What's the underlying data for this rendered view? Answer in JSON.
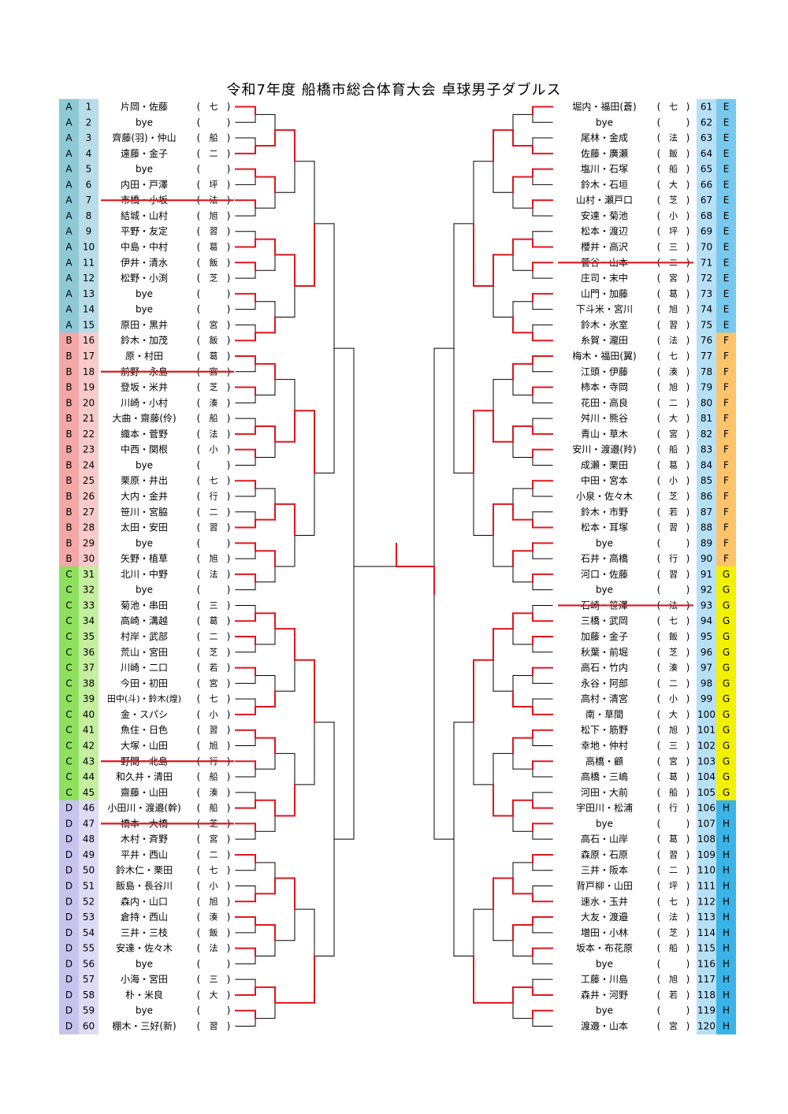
{
  "title": "令和7年度  船橋市総合体育大会  卓球男子ダブルス",
  "group_colors": {
    "A": {
      "block": "#8ec9d6",
      "num": "#b8dde8"
    },
    "B": {
      "block": "#f4a7a7",
      "num": "#f9caca"
    },
    "C": {
      "block": "#8ee05e",
      "num": "#c4ef9f"
    },
    "D": {
      "block": "#c6c3ee",
      "num": "#dddbf5"
    },
    "E": {
      "block": "#78c8ee",
      "num": "#b6e0f6"
    },
    "F": {
      "block": "#fcc46a",
      "num": "#b6e0f6"
    },
    "G": {
      "block": "#f2f200",
      "num": "#b6e0f6"
    },
    "H": {
      "block": "#3ab3e6",
      "num": "#b6e0f6"
    }
  },
  "line_colors": {
    "advance": "#e0161e",
    "bracket": "#000000"
  },
  "left_entries": [
    {
      "group": "A",
      "num": "1",
      "names": "片岡・佐藤",
      "club": "七",
      "scratched": false
    },
    {
      "group": "A",
      "num": "2",
      "names": "bye",
      "club": "",
      "scratched": false
    },
    {
      "group": "A",
      "num": "3",
      "names": "齊藤(羽)・仲山",
      "club": "船",
      "scratched": false
    },
    {
      "group": "A",
      "num": "4",
      "names": "遠藤・金子",
      "club": "二",
      "scratched": false
    },
    {
      "group": "A",
      "num": "5",
      "names": "bye",
      "club": "",
      "scratched": false
    },
    {
      "group": "A",
      "num": "6",
      "names": "内田・戸澤",
      "club": "坪",
      "scratched": false
    },
    {
      "group": "A",
      "num": "7",
      "names": "市橋・小坂",
      "club": "法",
      "scratched": true
    },
    {
      "group": "A",
      "num": "8",
      "names": "結城・山村",
      "club": "旭",
      "scratched": false
    },
    {
      "group": "A",
      "num": "9",
      "names": "平野・友定",
      "club": "習",
      "scratched": false
    },
    {
      "group": "A",
      "num": "10",
      "names": "中島・中村",
      "club": "葛",
      "scratched": false
    },
    {
      "group": "A",
      "num": "11",
      "names": "伊井・清水",
      "club": "飯",
      "scratched": false
    },
    {
      "group": "A",
      "num": "12",
      "names": "松野・小渕",
      "club": "芝",
      "scratched": false
    },
    {
      "group": "A",
      "num": "13",
      "names": "bye",
      "club": "",
      "scratched": false
    },
    {
      "group": "A",
      "num": "14",
      "names": "bye",
      "club": "",
      "scratched": false
    },
    {
      "group": "A",
      "num": "15",
      "names": "原田・黒井",
      "club": "宮",
      "scratched": false
    },
    {
      "group": "B",
      "num": "16",
      "names": "鈴木・加茂",
      "club": "飯",
      "scratched": false
    },
    {
      "group": "B",
      "num": "17",
      "names": "原・村田",
      "club": "葛",
      "scratched": false
    },
    {
      "group": "B",
      "num": "18",
      "names": "前野・永島",
      "club": "宮",
      "scratched": true
    },
    {
      "group": "B",
      "num": "19",
      "names": "登坂・米井",
      "club": "芝",
      "scratched": false
    },
    {
      "group": "B",
      "num": "20",
      "names": "川崎・小村",
      "club": "湊",
      "scratched": false
    },
    {
      "group": "B",
      "num": "21",
      "names": "大曲・齋藤(伶)",
      "club": "船",
      "scratched": false
    },
    {
      "group": "B",
      "num": "22",
      "names": "織本・菅野",
      "club": "法",
      "scratched": false
    },
    {
      "group": "B",
      "num": "23",
      "names": "中西・関根",
      "club": "小",
      "scratched": false
    },
    {
      "group": "B",
      "num": "24",
      "names": "bye",
      "club": "",
      "scratched": false
    },
    {
      "group": "B",
      "num": "25",
      "names": "栗原・井出",
      "club": "七",
      "scratched": false
    },
    {
      "group": "B",
      "num": "26",
      "names": "大内・金井",
      "club": "行",
      "scratched": false
    },
    {
      "group": "B",
      "num": "27",
      "names": "笹川・宮脇",
      "club": "二",
      "scratched": false
    },
    {
      "group": "B",
      "num": "28",
      "names": "太田・安田",
      "club": "習",
      "scratched": false
    },
    {
      "group": "B",
      "num": "29",
      "names": "bye",
      "club": "",
      "scratched": false
    },
    {
      "group": "B",
      "num": "30",
      "names": "矢野・植草",
      "club": "旭",
      "scratched": false
    },
    {
      "group": "C",
      "num": "31",
      "names": "北川・中野",
      "club": "法",
      "scratched": false
    },
    {
      "group": "C",
      "num": "32",
      "names": "bye",
      "club": "",
      "scratched": false
    },
    {
      "group": "C",
      "num": "33",
      "names": "菊池・串田",
      "club": "三",
      "scratched": false
    },
    {
      "group": "C",
      "num": "34",
      "names": "高崎・溝越",
      "club": "葛",
      "scratched": false
    },
    {
      "group": "C",
      "num": "35",
      "names": "村岸・武部",
      "club": "二",
      "scratched": false
    },
    {
      "group": "C",
      "num": "36",
      "names": "荒山・宮田",
      "club": "芝",
      "scratched": false
    },
    {
      "group": "C",
      "num": "37",
      "names": "川崎・二口",
      "club": "若",
      "scratched": false
    },
    {
      "group": "C",
      "num": "38",
      "names": "今田・初田",
      "club": "宮",
      "scratched": false
    },
    {
      "group": "C",
      "num": "39",
      "names": "田中(斗)・鈴木(煌)",
      "club": "七",
      "scratched": false
    },
    {
      "group": "C",
      "num": "40",
      "names": "金・スパシ",
      "club": "小",
      "scratched": false
    },
    {
      "group": "C",
      "num": "41",
      "names": "魚住・日色",
      "club": "習",
      "scratched": false
    },
    {
      "group": "C",
      "num": "42",
      "names": "大塚・山田",
      "club": "旭",
      "scratched": false
    },
    {
      "group": "C",
      "num": "43",
      "names": "野間・北島",
      "club": "行",
      "scratched": true
    },
    {
      "group": "C",
      "num": "44",
      "names": "和久井・清田",
      "club": "船",
      "scratched": false
    },
    {
      "group": "C",
      "num": "45",
      "names": "齋藤・山田",
      "club": "湊",
      "scratched": false
    },
    {
      "group": "D",
      "num": "46",
      "names": "小田川・渡邉(幹)",
      "club": "船",
      "scratched": false
    },
    {
      "group": "D",
      "num": "47",
      "names": "橋本・大橋",
      "club": "芝",
      "scratched": true
    },
    {
      "group": "D",
      "num": "48",
      "names": "木村・斉野",
      "club": "宮",
      "scratched": false
    },
    {
      "group": "D",
      "num": "49",
      "names": "平井・西山",
      "club": "二",
      "scratched": false
    },
    {
      "group": "D",
      "num": "50",
      "names": "鈴木仁・栗田",
      "club": "七",
      "scratched": false
    },
    {
      "group": "D",
      "num": "51",
      "names": "飯島・長谷川",
      "club": "小",
      "scratched": false
    },
    {
      "group": "D",
      "num": "52",
      "names": "森内・山口",
      "club": "旭",
      "scratched": false
    },
    {
      "group": "D",
      "num": "53",
      "names": "倉持・西山",
      "club": "湊",
      "scratched": false
    },
    {
      "group": "D",
      "num": "54",
      "names": "三井・三枝",
      "club": "飯",
      "scratched": false
    },
    {
      "group": "D",
      "num": "55",
      "names": "安達・佐々木",
      "club": "法",
      "scratched": false
    },
    {
      "group": "D",
      "num": "56",
      "names": "bye",
      "club": "",
      "scratched": false
    },
    {
      "group": "D",
      "num": "57",
      "names": "小海・宮田",
      "club": "三",
      "scratched": false
    },
    {
      "group": "D",
      "num": "58",
      "names": "朴・米良",
      "club": "大",
      "scratched": false
    },
    {
      "group": "D",
      "num": "59",
      "names": "bye",
      "club": "",
      "scratched": false
    },
    {
      "group": "D",
      "num": "60",
      "names": "棚木・三好(新)",
      "club": "習",
      "scratched": false
    }
  ],
  "right_entries": [
    {
      "group": "E",
      "num": "61",
      "names": "堀内・福田(蒼)",
      "club": "七",
      "scratched": false
    },
    {
      "group": "E",
      "num": "62",
      "names": "bye",
      "club": "",
      "scratched": false
    },
    {
      "group": "E",
      "num": "63",
      "names": "尾林・金成",
      "club": "法",
      "scratched": false
    },
    {
      "group": "E",
      "num": "64",
      "names": "佐藤・廣瀬",
      "club": "飯",
      "scratched": false
    },
    {
      "group": "E",
      "num": "65",
      "names": "塩川・石塚",
      "club": "船",
      "scratched": false
    },
    {
      "group": "E",
      "num": "66",
      "names": "鈴木・石垣",
      "club": "大",
      "scratched": false
    },
    {
      "group": "E",
      "num": "67",
      "names": "山村・瀬戸口",
      "club": "芝",
      "scratched": false
    },
    {
      "group": "E",
      "num": "68",
      "names": "安達・菊池",
      "club": "小",
      "scratched": false
    },
    {
      "group": "E",
      "num": "69",
      "names": "松本・渡辺",
      "club": "坪",
      "scratched": false
    },
    {
      "group": "E",
      "num": "70",
      "names": "櫻井・高沢",
      "club": "三",
      "scratched": false
    },
    {
      "group": "E",
      "num": "71",
      "names": "菅谷・山本",
      "club": "二",
      "scratched": true
    },
    {
      "group": "E",
      "num": "72",
      "names": "庄司・末中",
      "club": "宮",
      "scratched": false
    },
    {
      "group": "E",
      "num": "73",
      "names": "山門・加藤",
      "club": "葛",
      "scratched": false
    },
    {
      "group": "E",
      "num": "74",
      "names": "下斗米・宮川",
      "club": "旭",
      "scratched": false
    },
    {
      "group": "E",
      "num": "75",
      "names": "鈴木・氷室",
      "club": "習",
      "scratched": false
    },
    {
      "group": "F",
      "num": "76",
      "names": "糸賀・瀧田",
      "club": "法",
      "scratched": false
    },
    {
      "group": "F",
      "num": "77",
      "names": "梅木・福田(翼)",
      "club": "七",
      "scratched": false
    },
    {
      "group": "F",
      "num": "78",
      "names": "江頭・伊藤",
      "club": "湊",
      "scratched": false
    },
    {
      "group": "F",
      "num": "79",
      "names": "柿本・寺岡",
      "club": "旭",
      "scratched": false
    },
    {
      "group": "F",
      "num": "80",
      "names": "花田・高良",
      "club": "二",
      "scratched": false
    },
    {
      "group": "F",
      "num": "81",
      "names": "舛川・熊谷",
      "club": "大",
      "scratched": false
    },
    {
      "group": "F",
      "num": "82",
      "names": "青山・草木",
      "club": "宮",
      "scratched": false
    },
    {
      "group": "F",
      "num": "83",
      "names": "安川・渡邉(羚)",
      "club": "船",
      "scratched": false
    },
    {
      "group": "F",
      "num": "84",
      "names": "成瀬・栗田",
      "club": "葛",
      "scratched": false
    },
    {
      "group": "F",
      "num": "85",
      "names": "中田・宮本",
      "club": "小",
      "scratched": false
    },
    {
      "group": "F",
      "num": "86",
      "names": "小泉・佐々木",
      "club": "芝",
      "scratched": false
    },
    {
      "group": "F",
      "num": "87",
      "names": "鈴木・市野",
      "club": "若",
      "scratched": false
    },
    {
      "group": "F",
      "num": "88",
      "names": "松本・耳塚",
      "club": "習",
      "scratched": false
    },
    {
      "group": "F",
      "num": "89",
      "names": "bye",
      "club": "",
      "scratched": false
    },
    {
      "group": "F",
      "num": "90",
      "names": "石井・高橋",
      "club": "行",
      "scratched": false
    },
    {
      "group": "G",
      "num": "91",
      "names": "河口・佐藤",
      "club": "習",
      "scratched": false
    },
    {
      "group": "G",
      "num": "92",
      "names": "bye",
      "club": "",
      "scratched": false
    },
    {
      "group": "G",
      "num": "93",
      "names": "石崎・笹澤",
      "club": "法",
      "scratched": true
    },
    {
      "group": "G",
      "num": "94",
      "names": "三橋・武岡",
      "club": "七",
      "scratched": false
    },
    {
      "group": "G",
      "num": "95",
      "names": "加藤・金子",
      "club": "飯",
      "scratched": false
    },
    {
      "group": "G",
      "num": "96",
      "names": "秋葉・前堀",
      "club": "芝",
      "scratched": false
    },
    {
      "group": "G",
      "num": "97",
      "names": "高石・竹内",
      "club": "湊",
      "scratched": false
    },
    {
      "group": "G",
      "num": "98",
      "names": "永谷・阿部",
      "club": "二",
      "scratched": false
    },
    {
      "group": "G",
      "num": "99",
      "names": "高村・清宮",
      "club": "小",
      "scratched": false
    },
    {
      "group": "G",
      "num": "100",
      "names": "南・草間",
      "club": "大",
      "scratched": false
    },
    {
      "group": "G",
      "num": "101",
      "names": "松下・筋野",
      "club": "旭",
      "scratched": false
    },
    {
      "group": "G",
      "num": "102",
      "names": "幸地・仲村",
      "club": "三",
      "scratched": false
    },
    {
      "group": "G",
      "num": "103",
      "names": "高橋・顧",
      "club": "宮",
      "scratched": false
    },
    {
      "group": "G",
      "num": "104",
      "names": "高橋・三嶋",
      "club": "葛",
      "scratched": false
    },
    {
      "group": "G",
      "num": "105",
      "names": "河田・大前",
      "club": "船",
      "scratched": false
    },
    {
      "group": "H",
      "num": "106",
      "names": "宇田川・松浦",
      "club": "行",
      "scratched": false
    },
    {
      "group": "H",
      "num": "107",
      "names": "bye",
      "club": "",
      "scratched": false
    },
    {
      "group": "H",
      "num": "108",
      "names": "高石・山岸",
      "club": "葛",
      "scratched": false
    },
    {
      "group": "H",
      "num": "109",
      "names": "森原・石原",
      "club": "習",
      "scratched": false
    },
    {
      "group": "H",
      "num": "110",
      "names": "三井・阪本",
      "club": "二",
      "scratched": false
    },
    {
      "group": "H",
      "num": "111",
      "names": "背戸柳・山田",
      "club": "坪",
      "scratched": false
    },
    {
      "group": "H",
      "num": "112",
      "names": "速水・玉井",
      "club": "七",
      "scratched": false
    },
    {
      "group": "H",
      "num": "113",
      "names": "大友・渡邉",
      "club": "法",
      "scratched": false
    },
    {
      "group": "H",
      "num": "114",
      "names": "増田・小林",
      "club": "芝",
      "scratched": false
    },
    {
      "group": "H",
      "num": "115",
      "names": "坂本・布花原",
      "club": "船",
      "scratched": false
    },
    {
      "group": "H",
      "num": "116",
      "names": "bye",
      "club": "",
      "scratched": false
    },
    {
      "group": "H",
      "num": "117",
      "names": "工藤・川島",
      "club": "旭",
      "scratched": false
    },
    {
      "group": "H",
      "num": "118",
      "names": "森井・河野",
      "club": "若",
      "scratched": false
    },
    {
      "group": "H",
      "num": "119",
      "names": "bye",
      "club": "",
      "scratched": false
    },
    {
      "group": "H",
      "num": "120",
      "names": "渡邉・山本",
      "club": "宮",
      "scratched": false
    }
  ]
}
